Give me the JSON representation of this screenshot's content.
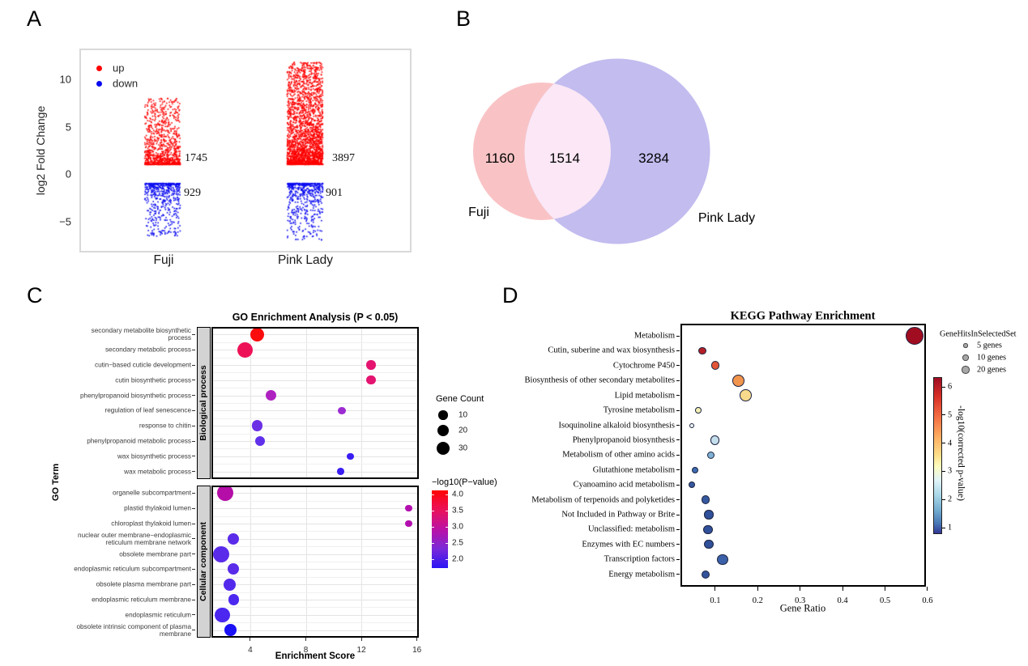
{
  "figure": {
    "panel_labels": [
      "A",
      "B",
      "C",
      "D"
    ]
  },
  "chart_data": [
    {
      "panel": "A",
      "type": "scatter",
      "title": "",
      "ylabel": "log2 Fold Change",
      "categories": [
        "Fuji",
        "Pink Lady"
      ],
      "yticks": [
        10,
        5,
        0,
        -5
      ],
      "ylim": [
        -8.5,
        12.5
      ],
      "series": [
        {
          "name": "up",
          "color": "#fe0000",
          "counts": [
            1745,
            3897
          ],
          "y_extent": [
            [
              1,
              8
            ],
            [
              1,
              11.8
            ]
          ]
        },
        {
          "name": "down",
          "color": "#0a0af0",
          "counts": [
            929,
            901
          ],
          "y_extent": [
            [
              -6.8,
              -1
            ],
            [
              -7,
              -1
            ]
          ]
        }
      ]
    },
    {
      "panel": "B",
      "type": "venn",
      "sets": [
        {
          "label": "Fuji",
          "only": 1160
        },
        {
          "label": "Pink Lady",
          "only": 3284
        }
      ],
      "overlap": 1514,
      "colors": {
        "fuji": "#f9c3c5",
        "pink_lady": "#c2bcef",
        "intersection": "#fbe7f5"
      }
    },
    {
      "panel": "C",
      "type": "bubble",
      "title": "GO Enrichment Analysis (P < 0.05)",
      "xlabel": "Enrichment Score",
      "ylabel": "GO Term",
      "xticks": [
        4,
        8,
        12,
        16
      ],
      "xlim": [
        1.2,
        16.3
      ],
      "size_legend": {
        "title": "Gene Count",
        "entries": [
          {
            "label": "10",
            "r": 5.7
          },
          {
            "label": "20",
            "r": 7.0
          },
          {
            "label": "30",
            "r": 8.3
          }
        ]
      },
      "color_legend": {
        "title": "−log10(P−value)",
        "ticks": [
          "4.0",
          "3.5",
          "3.0",
          "2.5",
          "2.0"
        ],
        "stops": [
          "#ff0303",
          "#ea125a",
          "#bb11a5",
          "#7a28d8",
          "#2a15f5"
        ]
      },
      "facets": [
        {
          "strip": "Biological process",
          "terms": [
            {
              "term": "secondary metabolite biosynthetic\nprocess",
              "score": 4.5,
              "genes": 27,
              "neg_log10_p": 4.0,
              "r": 8.5,
              "color": "#fb0d0d"
            },
            {
              "term": "secondary metabolic process",
              "score": 3.6,
              "genes": 33,
              "neg_log10_p": 3.6,
              "r": 9.5,
              "color": "#ed1257"
            },
            {
              "term": "cutin−based cuticle development",
              "score": 12.7,
              "genes": 12,
              "neg_log10_p": 3.4,
              "r": 5.7,
              "color": "#e41470"
            },
            {
              "term": "cutin biosynthetic process",
              "score": 12.7,
              "genes": 12,
              "neg_log10_p": 3.4,
              "r": 5.7,
              "color": "#e41470"
            },
            {
              "term": "phenylpropanoid biosynthetic process",
              "score": 5.5,
              "genes": 17,
              "neg_log10_p": 3.0,
              "r": 6.8,
              "color": "#ae22c0"
            },
            {
              "term": "regulation of leaf senescence",
              "score": 10.6,
              "genes": 8,
              "neg_log10_p": 2.8,
              "r": 4.8,
              "color": "#9c2cd2"
            },
            {
              "term": "response to chitin",
              "score": 4.5,
              "genes": 17,
              "neg_log10_p": 2.4,
              "r": 6.8,
              "color": "#6b2fe5"
            },
            {
              "term": "phenylpropanoid metabolic process",
              "score": 4.7,
              "genes": 15,
              "neg_log10_p": 2.3,
              "r": 6.4,
              "color": "#6030ea"
            },
            {
              "term": "wax biosynthetic process",
              "score": 11.2,
              "genes": 7,
              "neg_log10_p": 2.1,
              "r": 4.3,
              "color": "#3a1df3"
            },
            {
              "term": "wax metabolic process",
              "score": 10.5,
              "genes": 7,
              "neg_log10_p": 2.1,
              "r": 4.4,
              "color": "#3a1df3"
            }
          ]
        },
        {
          "strip": "Cellular component",
          "terms": [
            {
              "term": "organelle subcompartment",
              "score": 2.2,
              "genes": 35,
              "neg_log10_p": 3.0,
              "r": 10.0,
              "color": "#b50da8"
            },
            {
              "term": "plastid thylakoid lumen",
              "score": 15.4,
              "genes": 7,
              "neg_log10_p": 3.0,
              "r": 4.3,
              "color": "#b30fae"
            },
            {
              "term": "chloroplast thylakoid lumen",
              "score": 15.4,
              "genes": 7,
              "neg_log10_p": 3.0,
              "r": 4.3,
              "color": "#b30fae"
            },
            {
              "term": "nuclear outer membrane−endoplasmic\nreticulum membrane network",
              "score": 2.8,
              "genes": 18,
              "neg_log10_p": 2.3,
              "r": 7.0,
              "color": "#5a2be9"
            },
            {
              "term": "obsolete membrane part",
              "score": 1.9,
              "genes": 37,
              "neg_log10_p": 2.3,
              "r": 10.0,
              "color": "#5a2be9"
            },
            {
              "term": "endoplasmic reticulum subcompartment",
              "score": 2.8,
              "genes": 18,
              "neg_log10_p": 2.3,
              "r": 7.0,
              "color": "#5a2be9"
            },
            {
              "term": "obsolete plasma membrane part",
              "score": 2.5,
              "genes": 20,
              "neg_log10_p": 2.2,
              "r": 7.4,
              "color": "#532aec"
            },
            {
              "term": "endoplasmic reticulum membrane",
              "score": 2.8,
              "genes": 17,
              "neg_log10_p": 2.2,
              "r": 6.8,
              "color": "#4c27ef"
            },
            {
              "term": "endoplasmic reticulum",
              "score": 2.0,
              "genes": 31,
              "neg_log10_p": 2.2,
              "r": 9.2,
              "color": "#4c27ef"
            },
            {
              "term": "obsolete intrinsic component of plasma\nmembrane",
              "score": 2.6,
              "genes": 20,
              "neg_log10_p": 2.0,
              "r": 7.4,
              "color": "#1a11f6"
            }
          ]
        }
      ]
    },
    {
      "panel": "D",
      "type": "bubble",
      "title": "KEGG Pathway Enrichment",
      "xlabel": "Gene Ratio",
      "xticks": [
        "0.1",
        "0.2",
        "0.3",
        "0.4",
        "0.5",
        "0.6"
      ],
      "size_legend": {
        "title": "GeneHitsInSelectedSet",
        "entries": [
          {
            "label": "5 genes",
            "r": 2.7
          },
          {
            "label": "10 genes",
            "r": 3.7
          },
          {
            "label": "20 genes",
            "r": 4.7
          }
        ]
      },
      "color_legend": {
        "title": "-log10(corrected p-value)",
        "ticks": [
          6,
          5,
          4,
          3,
          2,
          1
        ],
        "stops": [
          "#9e0c22",
          "#d73027",
          "#f46d43",
          "#fdae61",
          "#fee08b",
          "#fdfdbf",
          "#e0f3f8",
          "#abd9e9",
          "#74add1",
          "#4575b4",
          "#313695"
        ]
      },
      "pathways": [
        {
          "name": "Metabolism",
          "ratio": 0.57,
          "genes": 110,
          "neg_log10_p": 6.3,
          "r": 11.0,
          "color": "#a00c20"
        },
        {
          "name": "Cutin, suberine and wax biosynthesis",
          "ratio": 0.07,
          "genes": 21,
          "neg_log10_p": 6.0,
          "r": 4.8,
          "color": "#b41f27"
        },
        {
          "name": "Cytochrome P450",
          "ratio": 0.1,
          "genes": 26,
          "neg_log10_p": 5.3,
          "r": 5.4,
          "color": "#e25538"
        },
        {
          "name": "Biosynthesis of other secondary metabolites",
          "ratio": 0.155,
          "genes": 50,
          "neg_log10_p": 4.6,
          "r": 7.4,
          "color": "#f0944e"
        },
        {
          "name": "Lipid metabolism",
          "ratio": 0.172,
          "genes": 50,
          "neg_log10_p": 3.9,
          "r": 7.4,
          "color": "#f8da8c"
        },
        {
          "name": "Tyrosine metabolism",
          "ratio": 0.06,
          "genes": 13,
          "neg_log10_p": 3.4,
          "r": 3.8,
          "color": "#f2efb2"
        },
        {
          "name": "Isoquinoline alkaloid biosynthesis",
          "ratio": 0.045,
          "genes": 8,
          "neg_log10_p": 3.0,
          "r": 3.0,
          "color": "#ebf2ee"
        },
        {
          "name": "Phenylpropanoid biosynthesis",
          "ratio": 0.1,
          "genes": 28,
          "neg_log10_p": 2.7,
          "r": 5.6,
          "color": "#c5deec"
        },
        {
          "name": "Metabolism of other amino acids",
          "ratio": 0.09,
          "genes": 21,
          "neg_log10_p": 2.2,
          "r": 4.8,
          "color": "#7fb1d4"
        },
        {
          "name": "Glutathione metabolism",
          "ratio": 0.052,
          "genes": 16,
          "neg_log10_p": 1.4,
          "r": 4.2,
          "color": "#3e6bb1"
        },
        {
          "name": "Cyanoamino acid metabolism",
          "ratio": 0.045,
          "genes": 14,
          "neg_log10_p": 1.2,
          "r": 4.0,
          "color": "#35589e"
        },
        {
          "name": "Metabolism of terpenoids and polyketides",
          "ratio": 0.077,
          "genes": 24,
          "neg_log10_p": 1.2,
          "r": 5.2,
          "color": "#35589e"
        },
        {
          "name": "Not Included in Pathway or Brite",
          "ratio": 0.085,
          "genes": 28,
          "neg_log10_p": 1.1,
          "r": 5.6,
          "color": "#30509a"
        },
        {
          "name": "Unclassified: metabolism",
          "ratio": 0.083,
          "genes": 28,
          "neg_log10_p": 1.1,
          "r": 5.6,
          "color": "#30509a"
        },
        {
          "name": "Enzymes with EC numbers",
          "ratio": 0.085,
          "genes": 28,
          "neg_log10_p": 1.1,
          "r": 5.6,
          "color": "#30509a"
        },
        {
          "name": "Transcription factors",
          "ratio": 0.117,
          "genes": 42,
          "neg_log10_p": 1.5,
          "r": 6.8,
          "color": "#3b61a8"
        },
        {
          "name": "Energy metabolism",
          "ratio": 0.077,
          "genes": 24,
          "neg_log10_p": 1.2,
          "r": 5.2,
          "color": "#33549c"
        }
      ]
    }
  ]
}
